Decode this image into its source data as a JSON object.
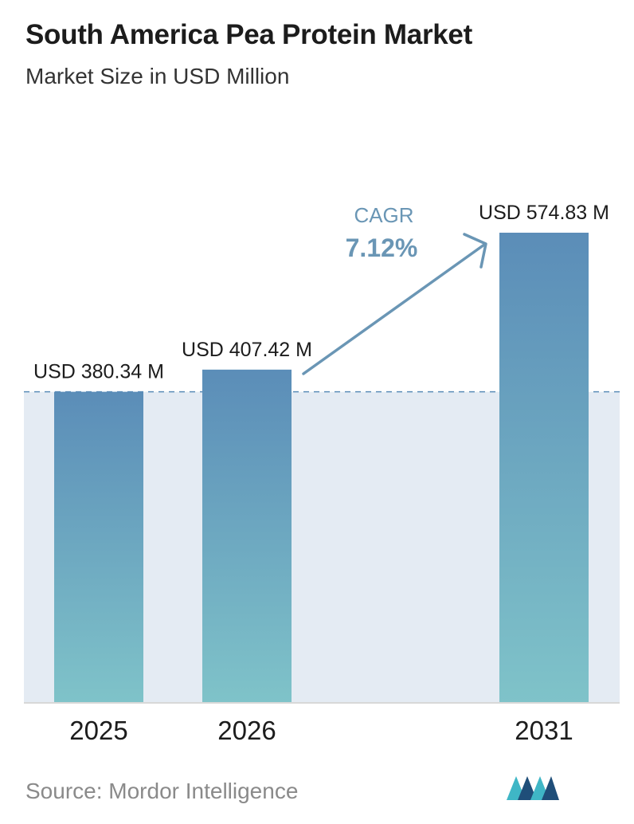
{
  "header": {
    "title": "South America Pea Protein Market",
    "subtitle": "Market Size in USD Million"
  },
  "footer": {
    "source": "Source:  Mordor Intelligence"
  },
  "colors": {
    "bar_top": "#5b8db8",
    "bar_bottom": "#7fc3c9",
    "band": "#e4ebf3",
    "dashed_line": "#5b8db8",
    "arrow": "#6a96b5",
    "logo_dark": "#1f4e79",
    "logo_teal": "#3fb6c6"
  },
  "chart_data": {
    "type": "bar",
    "categories": [
      "2025",
      "2026",
      "2031"
    ],
    "values": [
      380.34,
      407.42,
      574.83
    ],
    "value_labels": [
      "USD 380.34 M",
      "USD 407.42 M",
      "USD 574.83 M"
    ],
    "title": "South America Pea Protein Market",
    "subtitle": "Market Size in USD Million",
    "xlabel": "",
    "ylabel": "",
    "ylim": [
      0,
      574.83
    ],
    "grid": false,
    "annotations": {
      "cagr_label": "CAGR",
      "cagr_value": "7.12%"
    }
  }
}
